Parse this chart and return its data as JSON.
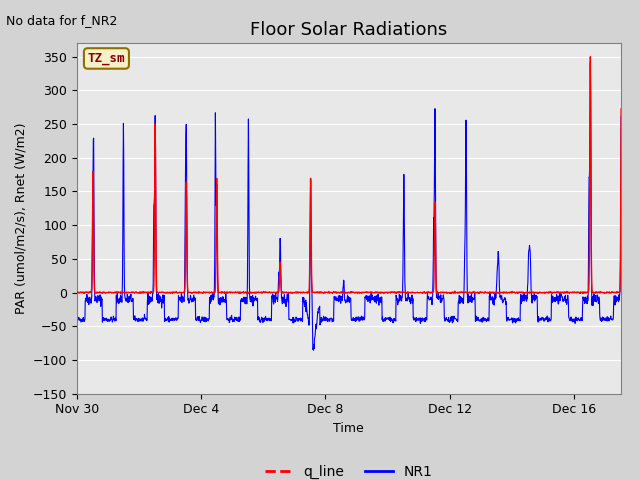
{
  "title": "Floor Solar Radiations",
  "top_left_note": "No data for f_NR2",
  "xlabel": "Time",
  "ylabel": "PAR (umol/m2/s), Rnet (W/m2)",
  "ylim": [
    -150,
    370
  ],
  "yticks": [
    -150,
    -100,
    -50,
    0,
    50,
    100,
    150,
    200,
    250,
    300,
    350
  ],
  "legend_labels": [
    "q_line",
    "NR1"
  ],
  "legend_colors": [
    "#ff0000",
    "#0000ff"
  ],
  "box_label": "TZ_sm",
  "box_facecolor": "#f5f0c8",
  "box_edgecolor": "#8b7000",
  "background_color": "#d3d3d3",
  "plot_bg_color": "#e8e8e8",
  "line_red_color": "#ff0000",
  "line_blue_color": "#0000ff",
  "title_fontsize": 13,
  "label_fontsize": 9,
  "tick_fontsize": 9,
  "xtick_positions": [
    0,
    4,
    8,
    12,
    16
  ],
  "xtick_labels": [
    "Nov 30",
    "Dec 4",
    "Dec 8",
    "Dec 12",
    "Dec 16"
  ],
  "xlim": [
    0,
    17.5
  ]
}
